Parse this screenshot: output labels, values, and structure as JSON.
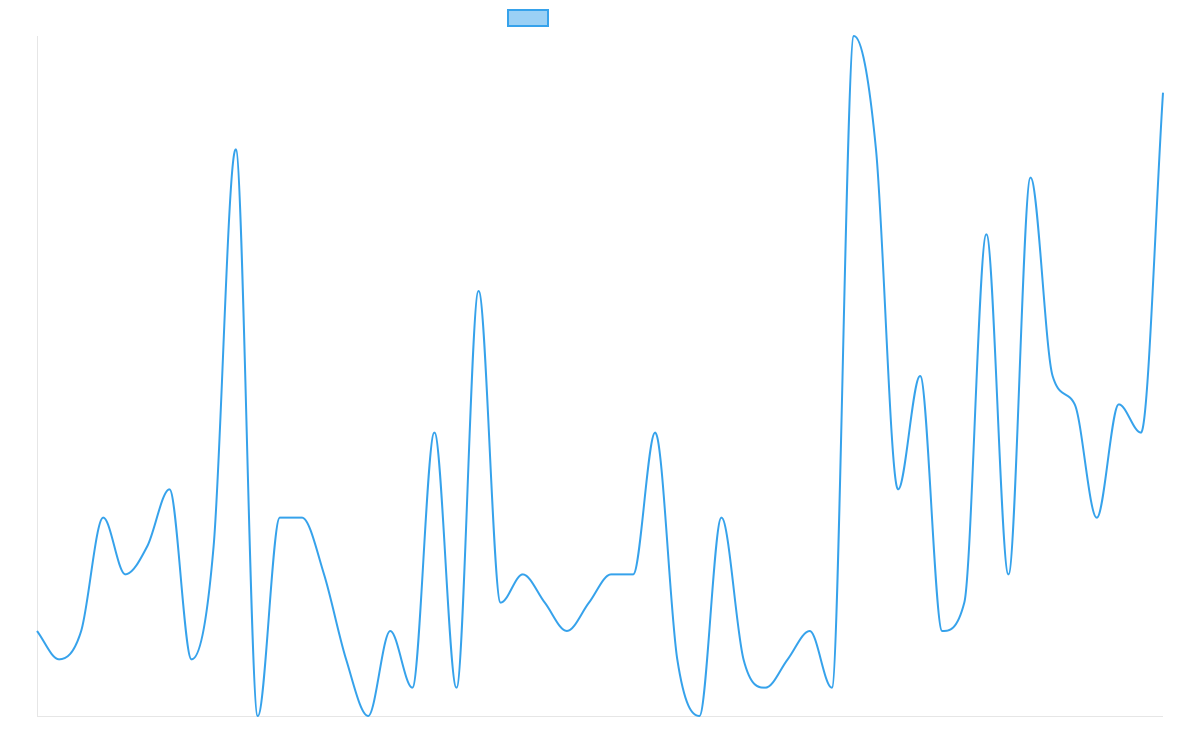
{
  "chart_data": {
    "type": "line",
    "title": "",
    "xlabel": "",
    "ylabel": "",
    "legend": {
      "position": "top-center",
      "entries": [
        {
          "label": "",
          "fill": "#9ad0f5",
          "stroke": "#36a2eb"
        }
      ]
    },
    "grid": false,
    "ylim": [
      0,
      12
    ],
    "x": [
      0,
      1,
      2,
      3,
      4,
      5,
      6,
      7,
      8,
      9,
      10,
      11,
      12,
      13,
      14,
      15,
      16,
      17,
      18,
      19,
      20,
      21,
      22,
      23,
      24,
      25,
      26,
      27,
      28,
      29,
      30,
      31,
      32,
      33,
      34,
      35,
      36,
      37,
      38,
      39,
      40,
      41,
      42,
      43,
      44,
      45,
      46,
      47,
      48,
      49,
      50,
      51
    ],
    "series": [
      {
        "color": "#36a2eb",
        "values": [
          1.5,
          1.0,
          1.5,
          3.5,
          2.5,
          3.0,
          4.0,
          1.0,
          3.0,
          10.0,
          0.0,
          3.5,
          3.5,
          2.5,
          1.0,
          0.0,
          1.5,
          0.5,
          5.0,
          0.5,
          7.5,
          2.0,
          2.5,
          2.0,
          1.5,
          2.0,
          2.5,
          2.5,
          5.0,
          1.0,
          0.0,
          3.5,
          1.0,
          0.5,
          1.0,
          1.5,
          0.5,
          12.0,
          10.0,
          4.0,
          6.0,
          1.5,
          2.0,
          8.5,
          2.5,
          9.5,
          6.0,
          5.5,
          3.5,
          5.5,
          5.0,
          11.0
        ]
      }
    ]
  }
}
